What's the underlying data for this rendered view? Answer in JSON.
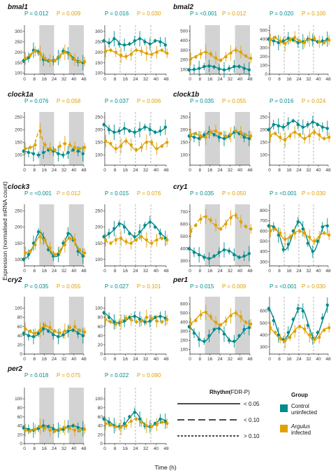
{
  "figure": {
    "y_axis_label": "Expression (normalised mRNA count)",
    "x_axis_label": "Time (h)",
    "x_ticks": [
      0,
      8,
      16,
      24,
      32,
      40,
      48
    ],
    "colors": {
      "control": "#008b8b",
      "infected": "#e0a100",
      "dark_phase": "#d3d3d3"
    }
  },
  "legend": {
    "rhythm_title": "Rhythm",
    "rhythm_subtitle": "(FDR-P)",
    "rhythm_levels": [
      "< 0.05",
      "< 0.10",
      "> 0.10"
    ],
    "group_title": "Group",
    "groups": [
      {
        "line1": "Control",
        "line2": "uninfected",
        "color": "#008b8b"
      },
      {
        "line1": "Argulus",
        "line2": "infected",
        "color": "#e0a100"
      }
    ]
  },
  "chart_data": [
    {
      "type": "scatter",
      "gene": "bmal1",
      "panel": "laboratory",
      "p_control": "P = 0.012",
      "p_infected": "P = 0.009",
      "y_ticks": [
        100,
        150,
        200,
        250,
        300
      ],
      "ylim": [
        95,
        330
      ],
      "dark_phase": [
        [
          12,
          24
        ],
        [
          36,
          48
        ]
      ],
      "series": [
        {
          "name": "control",
          "rhythm": "< 0.05",
          "values": [
            160,
            175,
            210,
            200,
            165,
            160,
            160,
            175,
            205,
            195,
            170,
            155,
            150
          ]
        },
        {
          "name": "infected",
          "rhythm": "< 0.05",
          "values": [
            170,
            185,
            205,
            195,
            170,
            160,
            160,
            180,
            200,
            190,
            165,
            155,
            155
          ]
        }
      ]
    },
    {
      "type": "scatter",
      "gene": "bmal1",
      "panel": "field",
      "p_control": "P = 0.016",
      "p_infected": "P = 0.030",
      "y_ticks": [
        100,
        150,
        200,
        250,
        300
      ],
      "ylim": [
        95,
        330
      ],
      "dark_phase": [],
      "series": [
        {
          "name": "control",
          "rhythm": "< 0.05",
          "values": [
            255,
            245,
            265,
            240,
            235,
            240,
            255,
            265,
            250,
            240,
            255,
            250,
            235
          ]
        },
        {
          "name": "infected",
          "rhythm": "< 0.05",
          "values": [
            205,
            210,
            200,
            185,
            180,
            190,
            210,
            205,
            195,
            190,
            200,
            210,
            195
          ]
        }
      ]
    },
    {
      "type": "scatter",
      "gene": "bmal2",
      "panel": "laboratory",
      "p_control": "P = <0.001",
      "p_infected": "P = 0.012",
      "y_ticks": [
        100,
        200,
        300,
        400,
        500
      ],
      "ylim": [
        50,
        560
      ],
      "dark_phase": [
        [
          12,
          24
        ],
        [
          36,
          48
        ]
      ],
      "series": [
        {
          "name": "control",
          "rhythm": "< 0.05",
          "values": [
            95,
            100,
            110,
            130,
            135,
            125,
            105,
            95,
            110,
            130,
            130,
            110,
            95
          ]
        },
        {
          "name": "infected",
          "rhythm": "< 0.05",
          "values": [
            210,
            230,
            260,
            280,
            260,
            220,
            195,
            230,
            270,
            300,
            280,
            240,
            215
          ]
        }
      ]
    },
    {
      "type": "scatter",
      "gene": "bmal2",
      "panel": "field",
      "p_control": "P = 0.020",
      "p_infected": "P = 0.100",
      "y_ticks": [
        0,
        100,
        200,
        300,
        400,
        500
      ],
      "ylim": [
        0,
        560
      ],
      "dark_phase": [],
      "series": [
        {
          "name": "control",
          "rhythm": "< 0.05",
          "values": [
            400,
            380,
            360,
            380,
            410,
            390,
            360,
            370,
            400,
            390,
            370,
            380,
            400
          ]
        },
        {
          "name": "infected",
          "rhythm": "< 0.10",
          "values": [
            390,
            420,
            380,
            350,
            390,
            420,
            380,
            360,
            400,
            410,
            370,
            360,
            390
          ]
        }
      ]
    },
    {
      "type": "scatter",
      "gene": "clock1a",
      "panel": "laboratory",
      "p_control": "P = 0.076",
      "p_infected": "P = 0.058",
      "y_ticks": [
        100,
        150,
        200,
        250
      ],
      "ylim": [
        60,
        270
      ],
      "dark_phase": [
        [
          12,
          24
        ],
        [
          36,
          48
        ]
      ],
      "series": [
        {
          "name": "control",
          "rhythm": "< 0.10",
          "values": [
            115,
            110,
            105,
            100,
            110,
            120,
            115,
            105,
            100,
            110,
            120,
            115,
            105
          ]
        },
        {
          "name": "infected",
          "rhythm": "< 0.10",
          "values": [
            125,
            130,
            140,
            195,
            140,
            125,
            120,
            135,
            145,
            140,
            130,
            125,
            130
          ]
        }
      ]
    },
    {
      "type": "scatter",
      "gene": "clock1a",
      "panel": "field",
      "p_control": "P = 0.037",
      "p_infected": "P = 0.006",
      "y_ticks": [
        100,
        150,
        200,
        250
      ],
      "ylim": [
        60,
        270
      ],
      "dark_phase": [],
      "series": [
        {
          "name": "control",
          "rhythm": "< 0.05",
          "values": [
            220,
            200,
            190,
            195,
            205,
            195,
            190,
            200,
            210,
            200,
            190,
            195,
            210
          ]
        },
        {
          "name": "infected",
          "rhythm": "< 0.05",
          "values": [
            155,
            145,
            125,
            135,
            155,
            140,
            120,
            130,
            150,
            150,
            125,
            135,
            150
          ]
        }
      ]
    },
    {
      "type": "scatter",
      "gene": "clock1b",
      "panel": "laboratory",
      "p_control": "P = 0.035",
      "p_infected": "P = 0.055",
      "y_ticks": [
        100,
        150,
        200,
        250
      ],
      "ylim": [
        60,
        270
      ],
      "dark_phase": [
        [
          12,
          24
        ],
        [
          36,
          48
        ]
      ],
      "series": [
        {
          "name": "control",
          "rhythm": "< 0.05",
          "values": [
            175,
            170,
            165,
            180,
            190,
            180,
            170,
            165,
            175,
            190,
            185,
            170,
            165
          ]
        },
        {
          "name": "infected",
          "rhythm": "< 0.10",
          "values": [
            180,
            185,
            175,
            170,
            190,
            195,
            185,
            175,
            180,
            195,
            190,
            180,
            175
          ]
        }
      ]
    },
    {
      "type": "scatter",
      "gene": "clock1b",
      "panel": "field",
      "p_control": "P = 0.016",
      "p_infected": "P = 0.024",
      "y_ticks": [
        100,
        150,
        200,
        250
      ],
      "ylim": [
        60,
        270
      ],
      "dark_phase": [],
      "series": [
        {
          "name": "control",
          "rhythm": "< 0.05",
          "values": [
            200,
            220,
            215,
            210,
            225,
            235,
            220,
            210,
            220,
            230,
            220,
            210,
            205
          ]
        },
        {
          "name": "infected",
          "rhythm": "< 0.05",
          "values": [
            175,
            185,
            170,
            160,
            175,
            190,
            180,
            165,
            175,
            190,
            180,
            165,
            170
          ]
        }
      ]
    },
    {
      "type": "scatter",
      "gene": "clock3",
      "panel": "laboratory",
      "p_control": "P = <0.001",
      "p_infected": "P = 0.012",
      "y_ticks": [
        100,
        150,
        200,
        250
      ],
      "ylim": [
        80,
        270
      ],
      "dark_phase": [
        [
          12,
          24
        ],
        [
          36,
          48
        ]
      ],
      "series": [
        {
          "name": "control",
          "rhythm": "< 0.05",
          "values": [
            100,
            115,
            150,
            185,
            165,
            130,
            110,
            115,
            150,
            180,
            160,
            125,
            110
          ]
        },
        {
          "name": "infected",
          "rhythm": "< 0.05",
          "values": [
            120,
            125,
            145,
            170,
            160,
            135,
            115,
            125,
            145,
            165,
            160,
            130,
            120
          ]
        }
      ]
    },
    {
      "type": "scatter",
      "gene": "clock3",
      "panel": "field",
      "p_control": "P = 0.015",
      "p_infected": "P = 0.076",
      "y_ticks": [
        100,
        150,
        200,
        250
      ],
      "ylim": [
        80,
        270
      ],
      "dark_phase": [],
      "series": [
        {
          "name": "control",
          "rhythm": "< 0.05",
          "values": [
            170,
            180,
            195,
            210,
            200,
            180,
            170,
            185,
            205,
            215,
            200,
            180,
            165
          ]
        },
        {
          "name": "infected",
          "rhythm": "< 0.10",
          "values": [
            160,
            150,
            160,
            165,
            155,
            150,
            160,
            170,
            160,
            150,
            160,
            165,
            160
          ]
        }
      ]
    },
    {
      "type": "scatter",
      "gene": "cry1",
      "panel": "laboratory",
      "p_control": "P = 0.035",
      "p_infected": "P = 0.050",
      "y_ticks": [
        300,
        400,
        500,
        600,
        700
      ],
      "ylim": [
        260,
        760
      ],
      "dark_phase": [
        [
          12,
          24
        ],
        [
          36,
          48
        ]
      ],
      "series": [
        {
          "name": "control",
          "rhythm": "< 0.05",
          "values": [
            400,
            370,
            350,
            330,
            320,
            340,
            370,
            390,
            380,
            350,
            330,
            340,
            360
          ]
        },
        {
          "name": "infected",
          "rhythm": "< 0.10",
          "values": [
            540,
            590,
            640,
            660,
            630,
            590,
            560,
            600,
            650,
            670,
            620,
            580,
            560
          ]
        }
      ]
    },
    {
      "type": "scatter",
      "gene": "cry1",
      "panel": "field",
      "p_control": "P = <0.001",
      "p_infected": "P = 0.030",
      "y_ticks": [
        300,
        400,
        500,
        600,
        700,
        800
      ],
      "ylim": [
        260,
        860
      ],
      "dark_phase": [],
      "series": [
        {
          "name": "control",
          "rhythm": "< 0.05",
          "values": [
            650,
            640,
            560,
            420,
            470,
            600,
            690,
            620,
            480,
            400,
            500,
            640,
            650
          ]
        },
        {
          "name": "infected",
          "rhythm": "< 0.05",
          "values": [
            600,
            620,
            580,
            520,
            540,
            580,
            600,
            580,
            540,
            500,
            540,
            580,
            560
          ]
        }
      ]
    },
    {
      "type": "scatter",
      "gene": "cry2",
      "panel": "laboratory",
      "p_control": "P = 0.035",
      "p_infected": "P = 0.055",
      "y_ticks": [
        0,
        20,
        40,
        60,
        80,
        100
      ],
      "ylim": [
        0,
        125
      ],
      "dark_phase": [
        [
          12,
          24
        ],
        [
          36,
          48
        ]
      ],
      "series": [
        {
          "name": "control",
          "rhythm": "< 0.05",
          "values": [
            45,
            40,
            38,
            45,
            55,
            50,
            42,
            38,
            42,
            50,
            52,
            45,
            40
          ]
        },
        {
          "name": "infected",
          "rhythm": "< 0.10",
          "values": [
            55,
            50,
            45,
            52,
            62,
            58,
            50,
            46,
            50,
            58,
            60,
            52,
            48
          ]
        }
      ]
    },
    {
      "type": "scatter",
      "gene": "cry2",
      "panel": "field",
      "p_control": "P = 0.027",
      "p_infected": "P = 0.101",
      "y_ticks": [
        0,
        20,
        40,
        60,
        80,
        100
      ],
      "ylim": [
        0,
        125
      ],
      "dark_phase": [],
      "series": [
        {
          "name": "control",
          "rhythm": "< 0.05",
          "values": [
            90,
            80,
            70,
            68,
            72,
            80,
            82,
            76,
            70,
            72,
            80,
            82,
            78
          ]
        },
        {
          "name": "infected",
          "rhythm": "> 0.10",
          "values": [
            75,
            70,
            65,
            70,
            78,
            75,
            70,
            72,
            80,
            78,
            72,
            70,
            75
          ]
        }
      ]
    },
    {
      "type": "scatter",
      "gene": "per1",
      "panel": "laboratory",
      "p_control": "P = 0.015",
      "p_infected": "P = 0.009",
      "y_ticks": [
        100,
        200,
        300,
        400,
        500,
        600
      ],
      "ylim": [
        50,
        680
      ],
      "dark_phase": [
        [
          12,
          24
        ],
        [
          36,
          48
        ]
      ],
      "series": [
        {
          "name": "control",
          "rhythm": "< 0.05",
          "values": [
            350,
            280,
            210,
            190,
            250,
            320,
            330,
            270,
            200,
            190,
            250,
            320,
            340
          ]
        },
        {
          "name": "infected",
          "rhythm": "< 0.05",
          "values": [
            380,
            420,
            480,
            510,
            460,
            400,
            370,
            410,
            470,
            500,
            460,
            400,
            380
          ]
        }
      ]
    },
    {
      "type": "scatter",
      "gene": "per1",
      "panel": "field",
      "p_control": "P = <0.001",
      "p_infected": "P = 0.030",
      "y_ticks": [
        300,
        400,
        500,
        600
      ],
      "ylim": [
        240,
        720
      ],
      "dark_phase": [],
      "series": [
        {
          "name": "control",
          "rhythm": "< 0.05",
          "values": [
            620,
            520,
            400,
            360,
            420,
            530,
            620,
            600,
            480,
            370,
            420,
            540,
            650
          ]
        },
        {
          "name": "infected",
          "rhythm": "< 0.05",
          "values": [
            460,
            420,
            370,
            350,
            380,
            430,
            470,
            450,
            400,
            360,
            380,
            440,
            460
          ]
        }
      ]
    },
    {
      "type": "scatter",
      "gene": "per2",
      "panel": "laboratory",
      "p_control": "P = 0.018",
      "p_infected": "P = 0.075",
      "y_ticks": [
        0,
        20,
        40,
        60,
        80,
        100
      ],
      "ylim": [
        0,
        125
      ],
      "dark_phase": [
        [
          12,
          24
        ],
        [
          36,
          48
        ]
      ],
      "series": [
        {
          "name": "control",
          "rhythm": "< 0.05",
          "values": [
            35,
            32,
            30,
            34,
            40,
            38,
            33,
            30,
            32,
            38,
            40,
            36,
            33
          ]
        },
        {
          "name": "infected",
          "rhythm": "< 0.10",
          "values": [
            30,
            28,
            32,
            38,
            35,
            30,
            28,
            32,
            36,
            34,
            30,
            29,
            32
          ]
        }
      ]
    },
    {
      "type": "scatter",
      "gene": "per2",
      "panel": "field",
      "p_control": "P = 0.022",
      "p_infected": "P = 0.090",
      "y_ticks": [
        0,
        20,
        40,
        60,
        80,
        100
      ],
      "ylim": [
        0,
        125
      ],
      "dark_phase": [],
      "series": [
        {
          "name": "control",
          "rhythm": "< 0.05",
          "values": [
            55,
            48,
            40,
            38,
            45,
            60,
            70,
            55,
            40,
            38,
            45,
            55,
            50
          ]
        },
        {
          "name": "infected",
          "rhythm": "< 0.10",
          "values": [
            45,
            42,
            38,
            36,
            40,
            50,
            55,
            48,
            40,
            38,
            42,
            48,
            45
          ]
        }
      ]
    }
  ]
}
